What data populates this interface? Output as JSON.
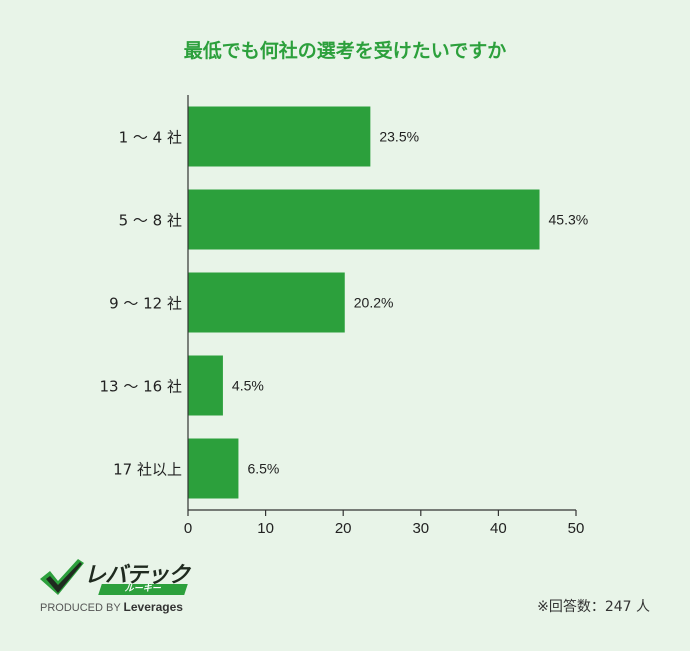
{
  "chart_data": {
    "type": "bar",
    "orientation": "horizontal",
    "title": "最低でも何社の選考を受けたいですか",
    "categories": [
      "1 ～ 4 社",
      "5 ～ 8 社",
      "9 ～ 12 社",
      "13 ～ 16 社",
      "17 社以上"
    ],
    "values": [
      23.5,
      45.3,
      20.2,
      4.5,
      6.5
    ],
    "value_labels": [
      "23.5%",
      "45.3%",
      "20.2%",
      "4.5%",
      "6.5%"
    ],
    "xlim": [
      0,
      50
    ],
    "xticks": [
      "0",
      "10",
      "20",
      "30",
      "40",
      "50"
    ],
    "xlabel": "",
    "ylabel": "",
    "bar_color": "#2ca03c",
    "grid": false
  },
  "brand": {
    "name": "レバテック",
    "badge": "ルーキー",
    "produced_by": "PRODUCED BY",
    "company": "Leverages"
  },
  "footnote": "※回答数：247 人",
  "colors": {
    "background": "#e8f4e8",
    "accent": "#2ca03c"
  }
}
